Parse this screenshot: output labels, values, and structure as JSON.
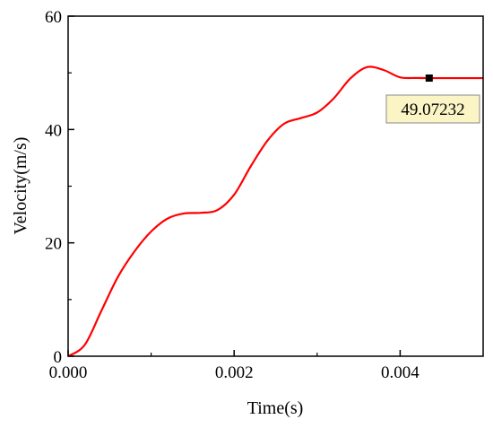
{
  "chart_data": {
    "type": "line",
    "title": "",
    "xlabel": "Time(s)",
    "ylabel": "Velocity(m/s)",
    "xlim": [
      0,
      0.005
    ],
    "ylim": [
      0,
      60
    ],
    "x_ticks": [
      "0.000",
      "0.002",
      "0.004"
    ],
    "y_ticks": [
      "0",
      "20",
      "40",
      "60"
    ],
    "x_tick_values": [
      0,
      0.002,
      0.004
    ],
    "y_tick_values": [
      0,
      20,
      40,
      60
    ],
    "grid": false,
    "series": [
      {
        "color": "#ff0000",
        "x": [
          0,
          0.0002,
          0.0004,
          0.0006,
          0.0008,
          0.001,
          0.0012,
          0.0014,
          0.0016,
          0.0018,
          0.002,
          0.0022,
          0.0024,
          0.0026,
          0.0028,
          0.003,
          0.0032,
          0.0034,
          0.0036,
          0.0038,
          0.004,
          0.0042,
          0.0044,
          0.0046,
          0.0048,
          0.005
        ],
        "y": [
          0,
          2,
          8,
          14,
          18.5,
          22,
          24.3,
          25.2,
          25.3,
          25.8,
          28.5,
          33.5,
          38,
          41,
          42,
          43,
          45.5,
          49,
          51,
          50.5,
          49.2,
          49.1,
          49.07,
          49.07,
          49.07,
          49.07
        ]
      }
    ],
    "annotation": {
      "label": "49.07232",
      "x": 0.00435,
      "y": 49.07232
    }
  }
}
